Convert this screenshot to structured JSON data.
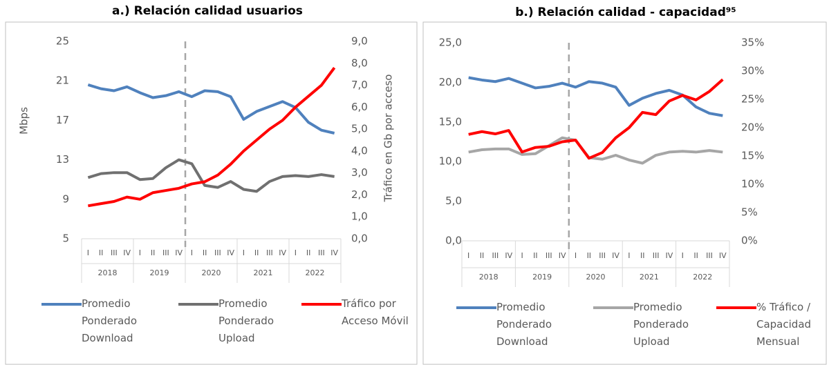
{
  "chart_data": [
    {
      "type": "line",
      "title": "a.)  Relación calidad usuarios",
      "ylabel": "Mbps",
      "y2label": "Tráfico en Gb por acceso",
      "categories": [
        "I",
        "II",
        "III",
        "IV",
        "I",
        "II",
        "III",
        "IV",
        "I",
        "II",
        "III",
        "IV",
        "I",
        "II",
        "III",
        "IV",
        "I",
        "II",
        "III",
        "IV"
      ],
      "category_groups": [
        "2018",
        "2019",
        "2020",
        "2021",
        "2022"
      ],
      "ylim": [
        5,
        25
      ],
      "yticks": [
        5,
        9,
        13,
        17,
        21,
        25
      ],
      "y2lim": [
        0,
        9
      ],
      "y2ticks": [
        {
          "value": 0,
          "label": "0,0"
        },
        {
          "value": 1,
          "label": "1,0"
        },
        {
          "value": 2,
          "label": "2,0"
        },
        {
          "value": 3,
          "label": "3,0"
        },
        {
          "value": 4,
          "label": "4,0"
        },
        {
          "value": 5,
          "label": "5,0"
        },
        {
          "value": 6,
          "label": "6,0"
        },
        {
          "value": 7,
          "label": "7,0"
        },
        {
          "value": 8,
          "label": "8,0"
        },
        {
          "value": 9,
          "label": "9,0"
        }
      ],
      "legend": "bottom",
      "series": [
        {
          "name": "Promedio Ponderado Download",
          "color": "#4f81bd",
          "values": [
            20.6,
            20.2,
            20.0,
            20.4,
            19.8,
            19.3,
            19.5,
            19.9,
            19.4,
            20.0,
            19.9,
            19.4,
            17.1,
            17.9,
            18.4,
            18.9,
            18.3,
            16.8,
            16.0,
            15.7
          ]
        },
        {
          "name": "Promedio Ponderado Upload",
          "color": "#707070",
          "values": [
            11.2,
            11.6,
            11.7,
            11.7,
            11.0,
            11.1,
            12.2,
            13.0,
            12.6,
            10.4,
            10.2,
            10.8,
            10.0,
            9.8,
            10.8,
            11.3,
            11.4,
            11.3,
            11.5,
            11.3
          ]
        },
        {
          "name": "Tráfico por Acceso Móvil",
          "color": "#ff0000",
          "axis": "y2",
          "values": [
            1.5,
            1.6,
            1.7,
            1.9,
            1.8,
            2.1,
            2.2,
            2.3,
            2.5,
            2.6,
            2.9,
            3.4,
            4.0,
            4.5,
            5.0,
            5.4,
            6.0,
            6.5,
            7.0,
            7.8
          ]
        }
      ]
    },
    {
      "type": "line",
      "title": "b.) Relación calidad - capacidad⁹⁵",
      "categories": [
        "I",
        "II",
        "III",
        "IV",
        "I",
        "II",
        "III",
        "IV",
        "I",
        "II",
        "III",
        "IV",
        "I",
        "II",
        "III",
        "IV",
        "I",
        "II",
        "III",
        "IV"
      ],
      "category_groups": [
        "2018",
        "2019",
        "2020",
        "2021",
        "2022"
      ],
      "ylim": [
        0,
        25
      ],
      "yticks": [
        {
          "value": 0,
          "label": "0,0"
        },
        {
          "value": 5,
          "label": "5,0"
        },
        {
          "value": 10,
          "label": "10,0"
        },
        {
          "value": 15,
          "label": "15,0"
        },
        {
          "value": 20,
          "label": "20,0"
        },
        {
          "value": 25,
          "label": "25,0"
        }
      ],
      "y2lim": [
        0,
        35
      ],
      "y2ticks": [
        {
          "value": 0,
          "label": "0%"
        },
        {
          "value": 5,
          "label": "5%"
        },
        {
          "value": 10,
          "label": "10%"
        },
        {
          "value": 15,
          "label": "15%"
        },
        {
          "value": 20,
          "label": "20%"
        },
        {
          "value": 25,
          "label": "25%"
        },
        {
          "value": 30,
          "label": "30%"
        },
        {
          "value": 35,
          "label": "35%"
        }
      ],
      "legend": "bottom",
      "series": [
        {
          "name": "Promedio Ponderado Download",
          "color": "#4f81bd",
          "values": [
            20.6,
            20.3,
            20.1,
            20.5,
            19.9,
            19.3,
            19.5,
            19.9,
            19.4,
            20.1,
            19.9,
            19.4,
            17.1,
            18.0,
            18.6,
            19.0,
            18.4,
            16.9,
            16.1,
            15.8
          ]
        },
        {
          "name": "Promedio Ponderado Upload",
          "color": "#a6a6a6",
          "values": [
            11.2,
            11.5,
            11.6,
            11.6,
            10.9,
            11.0,
            12.0,
            13.0,
            12.7,
            10.5,
            10.3,
            10.8,
            10.2,
            9.8,
            10.8,
            11.2,
            11.3,
            11.2,
            11.4,
            11.2
          ]
        },
        {
          "name": "% Tráfico / Capacidad Mensual",
          "color": "#ff0000",
          "axis": "y2",
          "values": [
            18.8,
            19.3,
            18.9,
            19.5,
            15.7,
            16.5,
            16.7,
            17.5,
            17.8,
            14.6,
            15.6,
            18.2,
            20.0,
            22.7,
            22.3,
            24.7,
            25.7,
            24.9,
            26.4,
            28.5
          ]
        }
      ]
    }
  ]
}
